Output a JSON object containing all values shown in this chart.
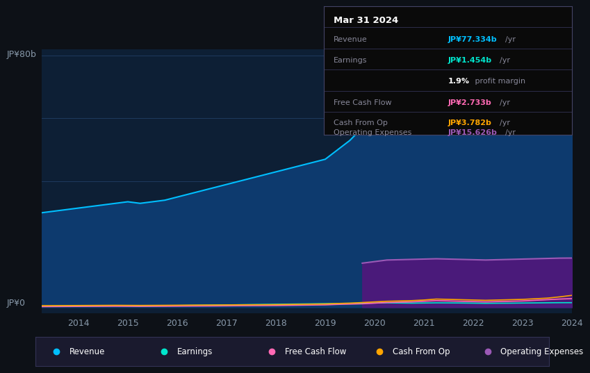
{
  "bg_color": "#0d1117",
  "plot_bg_color": "#0d1f35",
  "grid_color": "#1e3a5f",
  "title_date": "Mar 31 2024",
  "tooltip": {
    "Revenue": {
      "value": "JP¥77.334b /yr",
      "color": "#00bfff"
    },
    "Earnings": {
      "value": "JP¥1.454b /yr",
      "color": "#00e5cc"
    },
    "profit_margin": "1.9% profit margin",
    "Free Cash Flow": {
      "value": "JP¥2.733b /yr",
      "color": "#ff69b4"
    },
    "Cash From Op": {
      "value": "JP¥3.782b /yr",
      "color": "#ffa500"
    },
    "Operating Expenses": {
      "value": "JP¥15.626b /yr",
      "color": "#9b59b6"
    }
  },
  "ylabel_top": "JP¥80b",
  "ylabel_bottom": "JP¥0",
  "years": [
    2013.25,
    2013.5,
    2013.75,
    2014.0,
    2014.25,
    2014.5,
    2014.75,
    2015.0,
    2015.25,
    2015.5,
    2015.75,
    2016.0,
    2016.25,
    2016.5,
    2016.75,
    2017.0,
    2017.25,
    2017.5,
    2017.75,
    2018.0,
    2018.25,
    2018.5,
    2018.75,
    2019.0,
    2019.25,
    2019.5,
    2019.75,
    2020.0,
    2020.25,
    2020.5,
    2020.75,
    2021.0,
    2021.25,
    2021.5,
    2021.75,
    2022.0,
    2022.25,
    2022.5,
    2022.75,
    2023.0,
    2023.25,
    2023.5,
    2023.75,
    2024.0
  ],
  "revenue": [
    30,
    30.5,
    31,
    31.5,
    32,
    32.5,
    33,
    33.5,
    33,
    33.5,
    34,
    35,
    36,
    37,
    38,
    39,
    40,
    41,
    42,
    43,
    44,
    45,
    46,
    47,
    50,
    53,
    57,
    60,
    62,
    65,
    68,
    72,
    74,
    73,
    70,
    67,
    64,
    63,
    62,
    63,
    65,
    70,
    75,
    77.334
  ],
  "earnings": [
    0.3,
    0.35,
    0.4,
    0.45,
    0.5,
    0.5,
    0.55,
    0.5,
    0.4,
    0.45,
    0.5,
    0.55,
    0.6,
    0.65,
    0.7,
    0.75,
    0.8,
    0.85,
    0.9,
    0.95,
    1.0,
    1.05,
    1.1,
    1.15,
    1.2,
    1.25,
    1.3,
    1.35,
    1.4,
    1.35,
    1.3,
    1.35,
    1.4,
    1.38,
    1.35,
    1.3,
    1.25,
    1.28,
    1.3,
    1.35,
    1.38,
    1.42,
    1.45,
    1.454
  ],
  "free_cash_flow": [
    0.2,
    0.22,
    0.24,
    0.26,
    0.28,
    0.3,
    0.32,
    0.3,
    0.28,
    0.3,
    0.32,
    0.35,
    0.38,
    0.4,
    0.42,
    0.45,
    0.48,
    0.5,
    0.52,
    0.55,
    0.6,
    0.65,
    0.7,
    0.75,
    0.9,
    1.0,
    1.1,
    1.3,
    1.5,
    1.6,
    1.7,
    1.9,
    2.1,
    2.0,
    1.9,
    1.8,
    1.7,
    1.8,
    1.9,
    2.0,
    2.2,
    2.4,
    2.6,
    2.733
  ],
  "cash_from_op": [
    0.5,
    0.52,
    0.54,
    0.56,
    0.58,
    0.6,
    0.62,
    0.6,
    0.58,
    0.6,
    0.62,
    0.65,
    0.68,
    0.7,
    0.72,
    0.75,
    0.78,
    0.8,
    0.82,
    0.85,
    0.9,
    0.95,
    1.0,
    1.05,
    1.2,
    1.3,
    1.5,
    1.7,
    1.9,
    2.0,
    2.1,
    2.3,
    2.6,
    2.5,
    2.4,
    2.3,
    2.2,
    2.3,
    2.4,
    2.5,
    2.7,
    2.9,
    3.3,
    3.782
  ],
  "operating_expenses": [
    0,
    0,
    0,
    0,
    0,
    0,
    0,
    0,
    0,
    0,
    0,
    0,
    0,
    0,
    0,
    0,
    0,
    0,
    0,
    0,
    0,
    0,
    0,
    0,
    0,
    0,
    14,
    14.5,
    15,
    15.1,
    15.2,
    15.3,
    15.4,
    15.3,
    15.2,
    15.1,
    15.0,
    15.1,
    15.2,
    15.3,
    15.4,
    15.5,
    15.6,
    15.626
  ],
  "xtick_years": [
    2014,
    2015,
    2016,
    2017,
    2018,
    2019,
    2020,
    2021,
    2022,
    2023,
    2024
  ],
  "revenue_color": "#00bfff",
  "revenue_fill_color": "#0d3a6e",
  "earnings_color": "#00e5cc",
  "free_cash_flow_color": "#ff69b4",
  "cash_from_op_color": "#ffa500",
  "operating_expenses_color": "#9b59b6",
  "operating_expenses_fill_color": "#4a1a7a",
  "legend_bg": "#1a1a2e",
  "legend_border": "#333355"
}
